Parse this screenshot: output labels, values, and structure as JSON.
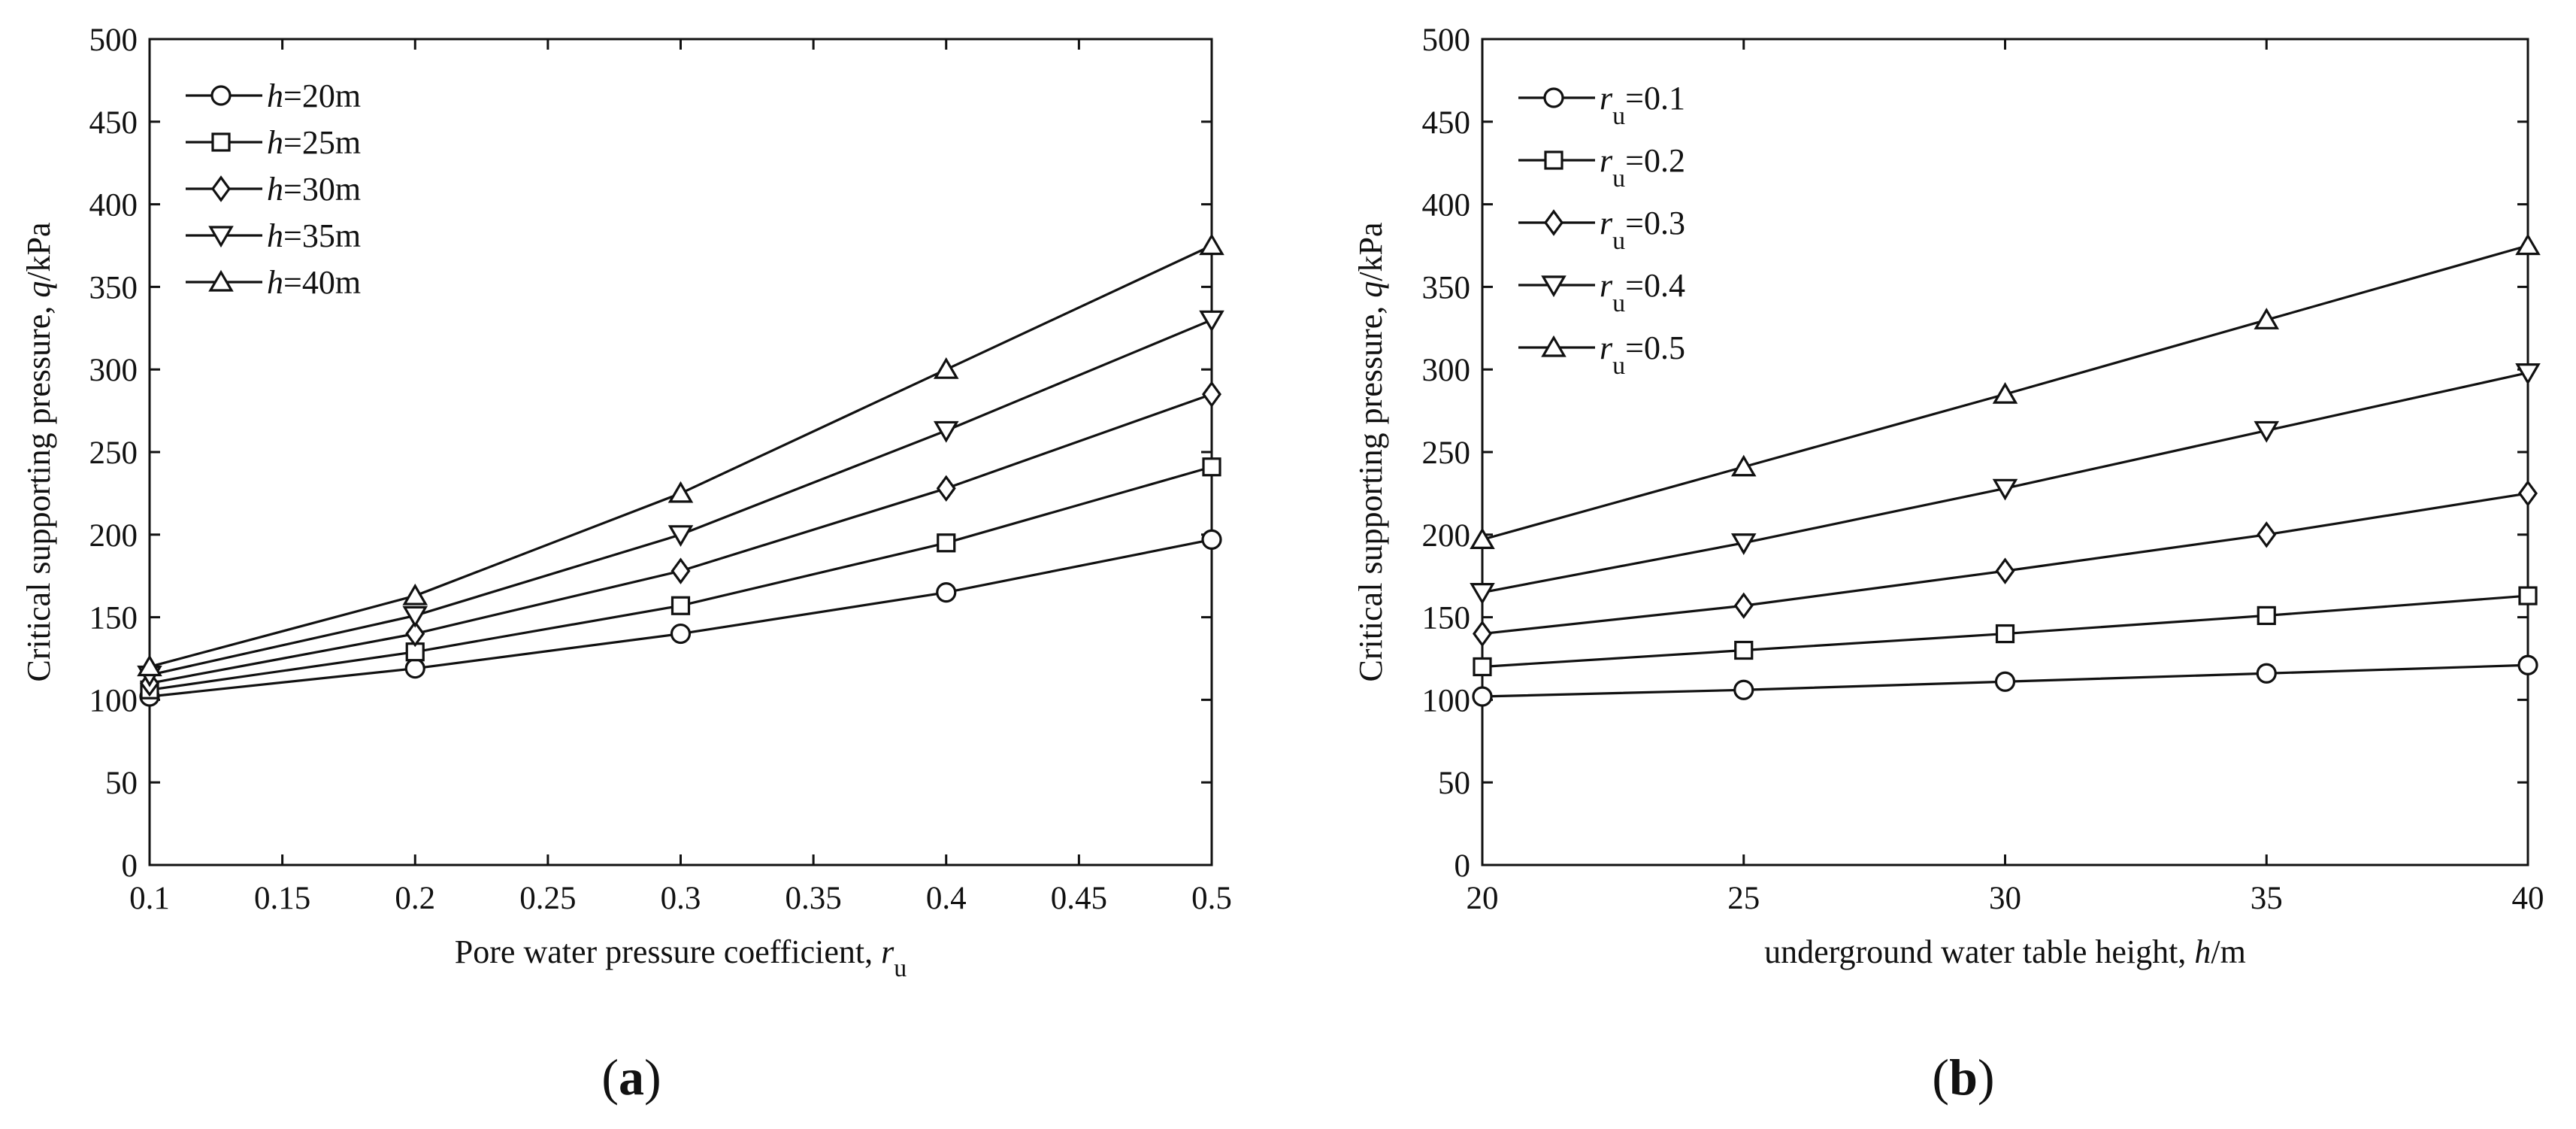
{
  "chart_data": [
    {
      "type": "line",
      "panel_label": "a",
      "title": "",
      "xlabel": {
        "text": "Pore water pressure coefficient, ",
        "var": "r",
        "sub": "u",
        "unit": ""
      },
      "ylabel": {
        "text": "Critical supporting pressure,  ",
        "var": "q",
        "unit": "/kPa"
      },
      "xlim": [
        0.1,
        0.5
      ],
      "ylim": [
        0,
        500
      ],
      "xticks": [
        "0.1",
        "0.15",
        "0.2",
        "0.25",
        "0.3",
        "0.35",
        "0.4",
        "0.45",
        "0.5"
      ],
      "yticks": [
        "0",
        "50",
        "100",
        "150",
        "200",
        "250",
        "300",
        "350",
        "400",
        "450",
        "500"
      ],
      "grid": false,
      "legend_position": "top-left",
      "x": [
        0.1,
        0.2,
        0.3,
        0.4,
        0.5
      ],
      "series": [
        {
          "name": "h=20m",
          "legend": {
            "var": "h",
            "sub": "",
            "value": "=20m"
          },
          "marker": "circle",
          "values": [
            102,
            119,
            140,
            165,
            197
          ]
        },
        {
          "name": "h=25m",
          "legend": {
            "var": "h",
            "sub": "",
            "value": "=25m"
          },
          "marker": "square",
          "values": [
            106,
            129,
            157,
            195,
            241
          ]
        },
        {
          "name": "h=30m",
          "legend": {
            "var": "h",
            "sub": "",
            "value": "=30m"
          },
          "marker": "diamond",
          "values": [
            110,
            140,
            178,
            228,
            285
          ]
        },
        {
          "name": "h=35m",
          "legend": {
            "var": "h",
            "sub": "",
            "value": "=35m"
          },
          "marker": "triangle-down",
          "values": [
            115,
            151,
            200,
            263,
            330
          ]
        },
        {
          "name": "h=40m",
          "legend": {
            "var": "h",
            "sub": "",
            "value": "=40m"
          },
          "marker": "triangle-up",
          "values": [
            120,
            163,
            225,
            300,
            375
          ]
        }
      ]
    },
    {
      "type": "line",
      "panel_label": "b",
      "title": "",
      "xlabel": {
        "text": "underground water table height, ",
        "var": "h",
        "sub": "",
        "unit": "/m"
      },
      "ylabel": {
        "text": "Critical supporting pressure, ",
        "var": "q",
        "unit": "/kPa"
      },
      "xlim": [
        20,
        40
      ],
      "ylim": [
        0,
        500
      ],
      "xticks": [
        "20",
        "25",
        "30",
        "35",
        "40"
      ],
      "yticks": [
        "0",
        "50",
        "100",
        "150",
        "200",
        "250",
        "300",
        "350",
        "400",
        "450",
        "500"
      ],
      "grid": false,
      "legend_position": "top-left",
      "x": [
        20,
        25,
        30,
        35,
        40
      ],
      "series": [
        {
          "name": "ru=0.1",
          "legend": {
            "var": "r",
            "sub": "u",
            "value": "=0.1"
          },
          "marker": "circle",
          "values": [
            102,
            106,
            111,
            116,
            121
          ]
        },
        {
          "name": "ru=0.2",
          "legend": {
            "var": "r",
            "sub": "u",
            "value": "=0.2"
          },
          "marker": "square",
          "values": [
            120,
            130,
            140,
            151,
            163
          ]
        },
        {
          "name": "ru=0.3",
          "legend": {
            "var": "r",
            "sub": "u",
            "value": "=0.3"
          },
          "marker": "diamond",
          "values": [
            140,
            157,
            178,
            200,
            225
          ]
        },
        {
          "name": "ru=0.4",
          "legend": {
            "var": "r",
            "sub": "u",
            "value": "=0.4"
          },
          "marker": "triangle-down",
          "values": [
            165,
            195,
            228,
            263,
            298
          ]
        },
        {
          "name": "ru=0.5",
          "legend": {
            "var": "r",
            "sub": "u",
            "value": "=0.5"
          },
          "marker": "triangle-up",
          "values": [
            197,
            241,
            285,
            330,
            375
          ]
        }
      ]
    }
  ]
}
